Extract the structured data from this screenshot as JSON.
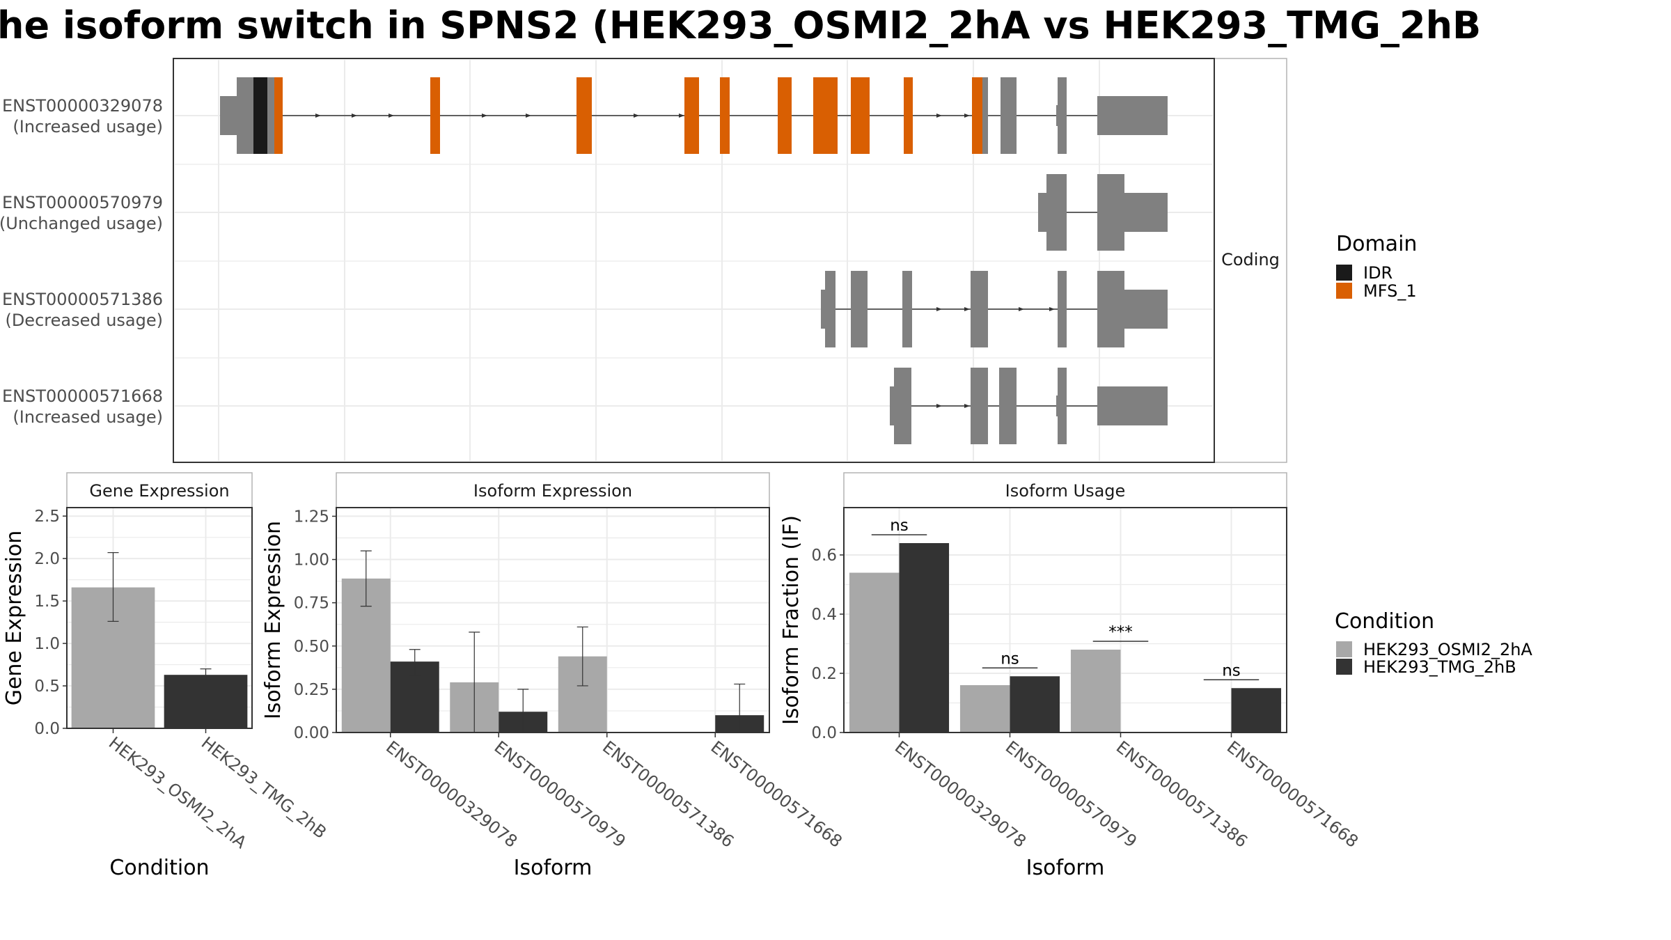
{
  "title": "he isoform switch in SPNS2 (HEK293_OSMI2_2hA vs HEK293_TMG_2hB",
  "colors": {
    "idr": "#1a1a1a",
    "mfs": "#d95f02",
    "utr": "#808080",
    "cond_a": "#a8a8a8",
    "cond_b": "#333333",
    "grid": "#ebebeb",
    "panel_border": "#333333",
    "strip_border": "#b3b3b3"
  },
  "chart_data": [
    {
      "type": "gene-structure",
      "panel_label": "Coding",
      "transcripts": [
        {
          "id": "ENST00000329078",
          "label": "ENST00000329078",
          "sublabel": "(Increased usage)"
        },
        {
          "id": "ENST00000570979",
          "label": "ENST00000570979",
          "sublabel": "(Unchanged usage)"
        },
        {
          "id": "ENST00000571386",
          "label": "ENST00000571386",
          "sublabel": "(Decreased usage)"
        },
        {
          "id": "ENST00000571668",
          "label": "ENST00000571668",
          "sublabel": "(Increased usage)"
        }
      ],
      "legend": {
        "title": "Domain",
        "entries": [
          {
            "label": "IDR",
            "color_key": "idr"
          },
          {
            "label": "MFS_1",
            "color_key": "mfs"
          }
        ]
      }
    },
    {
      "type": "bar",
      "panel_label": "Gene Expression",
      "xlabel": "Condition",
      "ylabel": "Gene Expression",
      "ylim": [
        0,
        2.6
      ],
      "yticks": [
        "0.0",
        "0.5",
        "1.0",
        "1.5",
        "2.0",
        "2.5"
      ],
      "categories": [
        "HEK293_OSMI2_2hA",
        "HEK293_TMG_2hB"
      ],
      "values": [
        1.66,
        0.63
      ],
      "err_low": [
        1.26,
        0.58
      ],
      "err_high": [
        2.07,
        0.7
      ]
    },
    {
      "type": "bar",
      "panel_label": "Isoform Expression",
      "xlabel": "Isoform",
      "ylabel": "Isoform Expression",
      "ylim": [
        0,
        1.3
      ],
      "yticks": [
        "0.00",
        "0.25",
        "0.50",
        "0.75",
        "1.00",
        "1.25"
      ],
      "categories": [
        "ENST00000329078",
        "ENST00000570979",
        "ENST00000571386",
        "ENST00000571668"
      ],
      "series": [
        {
          "name": "HEK293_OSMI2_2hA",
          "values": [
            0.89,
            0.29,
            0.44,
            0.0
          ],
          "err_low": [
            0.73,
            0.0,
            0.27,
            0.0
          ],
          "err_high": [
            1.05,
            0.58,
            0.61,
            0.0
          ]
        },
        {
          "name": "HEK293_TMG_2hB",
          "values": [
            0.41,
            0.12,
            0.0,
            0.1
          ],
          "err_low": [
            0.33,
            0.0,
            0.0,
            0.0
          ],
          "err_high": [
            0.48,
            0.25,
            0.0,
            0.28
          ]
        }
      ]
    },
    {
      "type": "bar",
      "panel_label": "Isoform Usage",
      "xlabel": "Isoform",
      "ylabel": "Isoform Fraction (IF)",
      "ylim": [
        0,
        0.76
      ],
      "yticks": [
        "0.0",
        "0.2",
        "0.4",
        "0.6"
      ],
      "categories": [
        "ENST00000329078",
        "ENST00000570979",
        "ENST00000571386",
        "ENST00000571668"
      ],
      "series": [
        {
          "name": "HEK293_OSMI2_2hA",
          "values": [
            0.54,
            0.16,
            0.28,
            0.0
          ]
        },
        {
          "name": "HEK293_TMG_2hB",
          "values": [
            0.64,
            0.19,
            0.0,
            0.15
          ]
        }
      ],
      "significance": [
        "ns",
        "ns",
        "***",
        "ns"
      ],
      "legend": {
        "title": "Condition",
        "entries": [
          {
            "label": "HEK293_OSMI2_2hA",
            "color_key": "cond_a"
          },
          {
            "label": "HEK293_TMG_2hB",
            "color_key": "cond_b"
          }
        ]
      }
    }
  ]
}
